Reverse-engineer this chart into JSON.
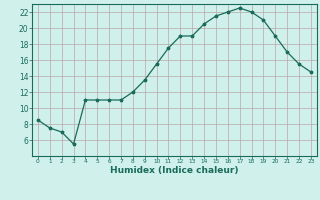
{
  "x": [
    0,
    1,
    2,
    3,
    4,
    5,
    6,
    7,
    8,
    9,
    10,
    11,
    12,
    13,
    14,
    15,
    16,
    17,
    18,
    19,
    20,
    21,
    22,
    23
  ],
  "y": [
    8.5,
    7.5,
    7.0,
    5.5,
    11.0,
    11.0,
    11.0,
    11.0,
    12.0,
    13.5,
    15.5,
    17.5,
    19.0,
    19.0,
    20.5,
    21.5,
    22.0,
    22.5,
    22.0,
    21.0,
    19.0,
    17.0,
    15.5,
    14.5
  ],
  "line_color": "#1a6b5a",
  "marker": "*",
  "marker_size": 2.5,
  "bg_color": "#cff0eb",
  "grid_color": "#b8a8a8",
  "tick_color": "#1a6b5a",
  "xlabel": "Humidex (Indice chaleur)",
  "ylim": [
    4,
    23
  ],
  "xlim": [
    -0.5,
    23.5
  ],
  "yticks": [
    6,
    8,
    10,
    12,
    14,
    16,
    18,
    20,
    22
  ],
  "xticks": [
    0,
    1,
    2,
    3,
    4,
    5,
    6,
    7,
    8,
    9,
    10,
    11,
    12,
    13,
    14,
    15,
    16,
    17,
    18,
    19,
    20,
    21,
    22,
    23
  ],
  "xlabel_fontsize": 6.5,
  "ytick_fontsize": 5.5,
  "xtick_fontsize": 4.2
}
